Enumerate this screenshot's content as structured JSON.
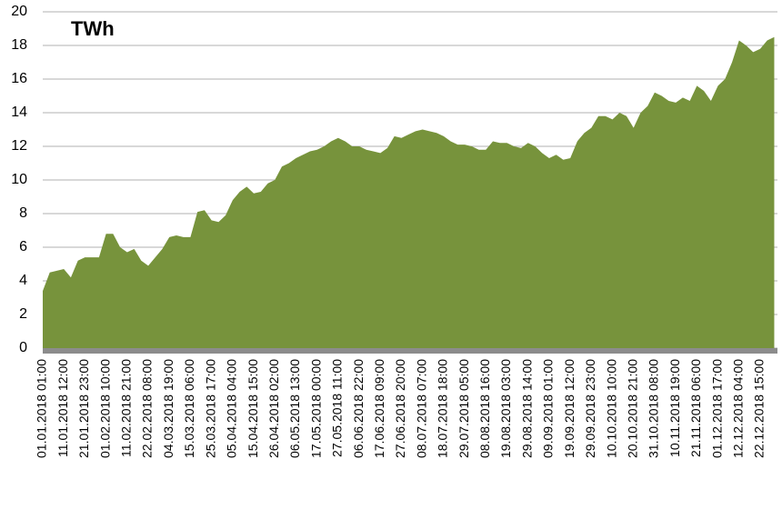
{
  "chart_data": {
    "type": "area",
    "title": "TWh",
    "categories": [
      "01.01.2018 01:00",
      null,
      null,
      "11.01.2018 12:00",
      null,
      null,
      "21.01.2018 23:00",
      null,
      null,
      "01.02.2018 10:00",
      null,
      null,
      "11.02.2018 21:00",
      null,
      null,
      "22.02.2018 08:00",
      null,
      null,
      "04.03.2018 19:00",
      null,
      null,
      "15.03.2018 06:00",
      null,
      null,
      "25.03.2018 17:00",
      null,
      null,
      "05.04.2018 04:00",
      null,
      null,
      "15.04.2018 15:00",
      null,
      null,
      "26.04.2018 02:00",
      null,
      null,
      "06.05.2018 13:00",
      null,
      null,
      "17.05.2018 00:00",
      null,
      null,
      "27.05.2018 11:00",
      null,
      null,
      "06.06.2018 22:00",
      null,
      null,
      "17.06.2018 09:00",
      null,
      null,
      "27.06.2018 20:00",
      null,
      null,
      "08.07.2018 07:00",
      null,
      null,
      "18.07.2018 18:00",
      null,
      null,
      "29.07.2018 05:00",
      null,
      null,
      "08.08.2018 16:00",
      null,
      null,
      "19.08.2018 03:00",
      null,
      null,
      "29.08.2018 14:00",
      null,
      null,
      "09.09.2018 01:00",
      null,
      null,
      "19.09.2018 12:00",
      null,
      null,
      "29.09.2018 23:00",
      null,
      null,
      "10.10.2018 10:00",
      null,
      null,
      "20.10.2018 21:00",
      null,
      null,
      "31.10.2018 08:00",
      null,
      null,
      "10.11.2018 19:00",
      null,
      null,
      "21.11.2018 06:00",
      null,
      null,
      "01.12.2018 17:00",
      null,
      null,
      "12.12.2018 04:00",
      null,
      null,
      "22.12.2018 15:00",
      null,
      null
    ],
    "series": [
      {
        "color": "#77933c",
        "values": [
          3.4,
          4.5,
          4.6,
          4.7,
          4.2,
          5.2,
          5.4,
          5.4,
          5.4,
          6.8,
          6.8,
          6.0,
          5.7,
          5.9,
          5.2,
          4.9,
          5.4,
          5.9,
          6.6,
          6.7,
          6.6,
          6.6,
          8.1,
          8.2,
          7.6,
          7.5,
          7.9,
          8.8,
          9.3,
          9.6,
          9.2,
          9.3,
          9.8,
          10.0,
          10.8,
          11.0,
          11.3,
          11.5,
          11.7,
          11.8,
          12.0,
          12.3,
          12.5,
          12.3,
          12.0,
          12.0,
          11.8,
          11.7,
          11.6,
          11.9,
          12.6,
          12.5,
          12.7,
          12.9,
          13.0,
          12.9,
          12.8,
          12.6,
          12.3,
          12.1,
          12.1,
          12.0,
          11.8,
          11.8,
          12.3,
          12.2,
          12.2,
          12.0,
          11.9,
          12.2,
          12.0,
          11.6,
          11.3,
          11.5,
          11.2,
          11.3,
          12.3,
          12.8,
          13.1,
          13.8,
          13.8,
          13.6,
          14.0,
          13.8,
          13.1,
          14.0,
          14.4,
          15.2,
          15.0,
          14.7,
          14.6,
          14.9,
          14.7,
          15.6,
          15.3,
          14.7,
          15.6,
          16.0,
          17.0,
          18.3,
          18.0,
          17.6,
          17.8,
          18.3,
          18.5
        ]
      }
    ],
    "ylim": [
      0,
      20
    ],
    "yticks": [
      0,
      2,
      4,
      6,
      8,
      10,
      12,
      14,
      16,
      18,
      20
    ],
    "grid": true
  }
}
